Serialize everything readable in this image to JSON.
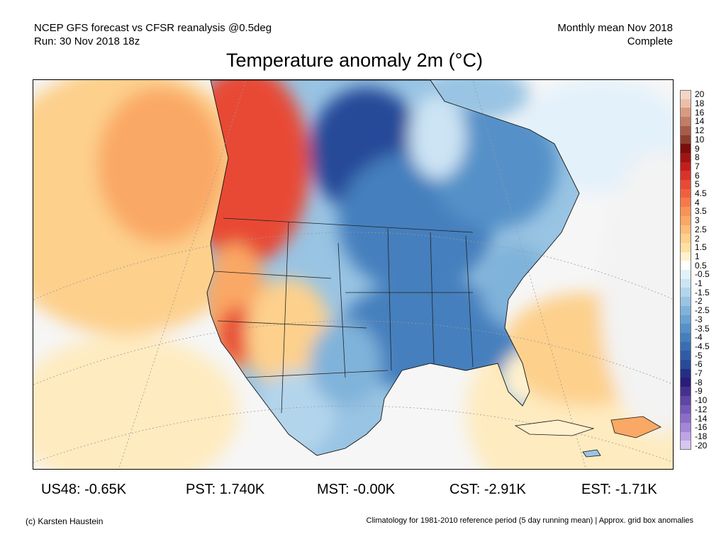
{
  "header": {
    "left_line1": "NCEP GFS forecast vs CFSR reanalysis @0.5deg",
    "left_line2": "Run: 30 Nov 2018 18z",
    "right_line1": "Monthly mean Nov 2018",
    "right_line2": "Complete"
  },
  "title": "Temperature anomaly 2m (°C)",
  "colorbar": {
    "labels": [
      "20",
      "18",
      "16",
      "14",
      "12",
      "10",
      "9",
      "8",
      "7",
      "6",
      "5",
      "4.5",
      "4",
      "3.5",
      "3",
      "2.5",
      "2",
      "1.5",
      "1",
      "0.5",
      "-0.5",
      "-1",
      "-1.5",
      "-2",
      "-2.5",
      "-3",
      "-3.5",
      "-4",
      "-4.5",
      "-5",
      "-6",
      "-7",
      "-8",
      "-9",
      "-10",
      "-12",
      "-14",
      "-16",
      "-18",
      "-20"
    ],
    "colors": [
      "#f4d6c7",
      "#ecbfa9",
      "#d89a80",
      "#c17d66",
      "#a75c48",
      "#8e3e2e",
      "#7a0e0e",
      "#a01414",
      "#c21e1e",
      "#d9332a",
      "#e84a35",
      "#f0603e",
      "#f57a48",
      "#f89355",
      "#faa865",
      "#fcbd78",
      "#fdd08c",
      "#fee0a4",
      "#fff1cd",
      "#ffffff",
      "#e3f1fb",
      "#cce4f4",
      "#b3d5ec",
      "#99c4e3",
      "#80b3da",
      "#6aa2d1",
      "#5591c8",
      "#447fbd",
      "#3a6db2",
      "#305ca6",
      "#284a98",
      "#222f85",
      "#2a1c78",
      "#45308e",
      "#5e45a6",
      "#7658b8",
      "#8b6dc8",
      "#a486d8",
      "#bea4e6",
      "#d6c6f1"
    ]
  },
  "stats": {
    "us48": "US48: -0.65K",
    "pst": "PST: 1.740K",
    "mst": "MST: -0.00K",
    "cst": "CST: -2.91K",
    "est": "EST: -1.71K"
  },
  "footer": {
    "left": "(c) Karsten Haustein",
    "right": "Climatology for 1981-2010 reference period (5 day running mean) | Approx. grid box anomalies"
  }
}
